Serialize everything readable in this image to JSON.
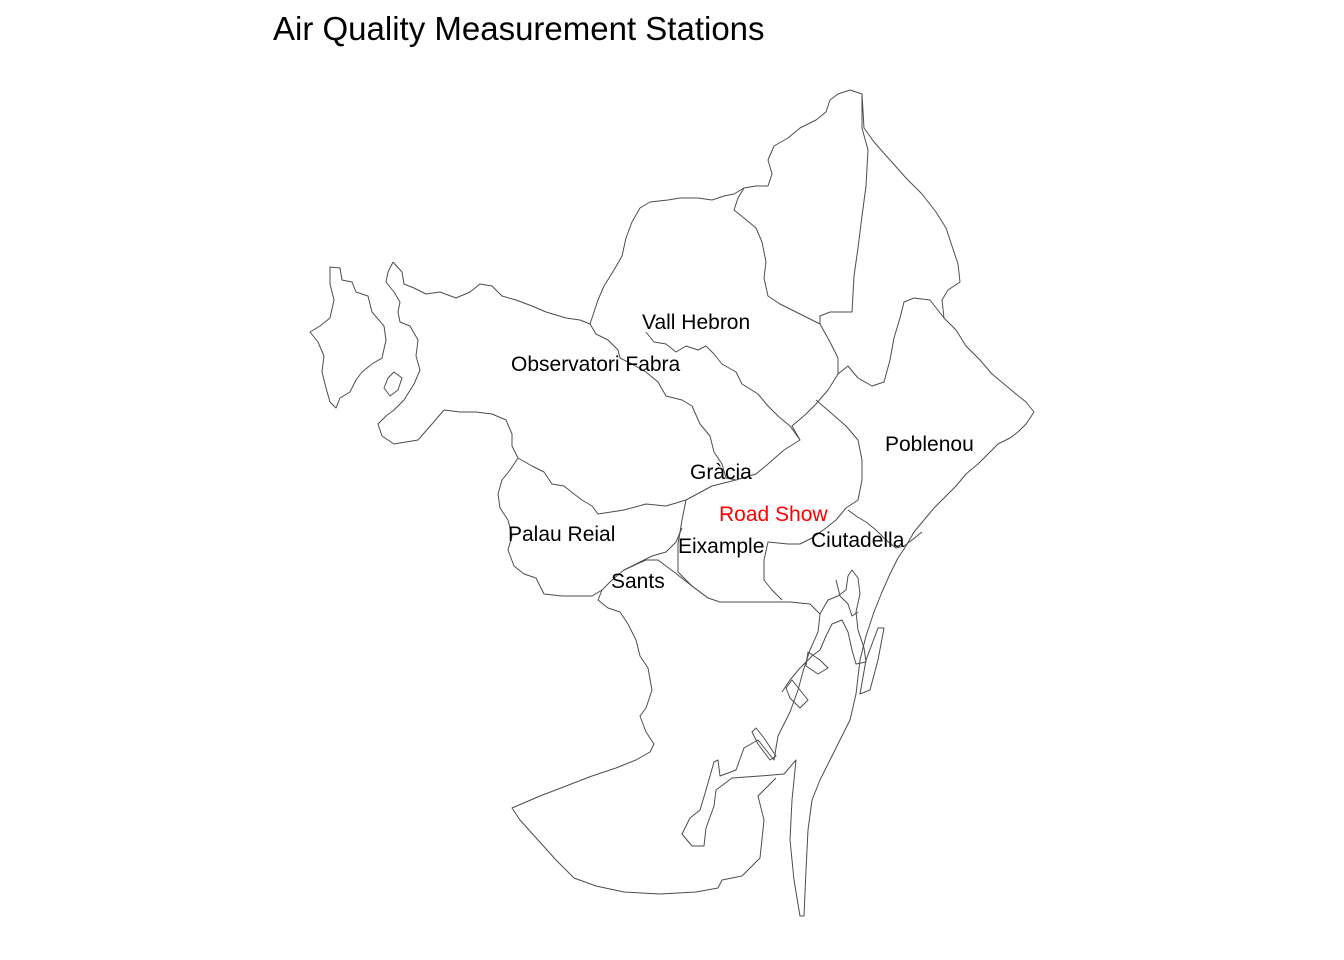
{
  "title": "Air Quality Measurement Stations",
  "colors": {
    "background": "#ffffff",
    "boundary": "#4d4d4d",
    "label_default": "#000000",
    "label_highlight": "#ff0000"
  },
  "stations": [
    {
      "id": "vall-hebron",
      "name": "Vall Hebron",
      "highlight": false
    },
    {
      "id": "observatori-fabra",
      "name": "Observatori Fabra",
      "highlight": false
    },
    {
      "id": "poblenou",
      "name": "Poblenou",
      "highlight": false
    },
    {
      "id": "gracia",
      "name": "Gràcia",
      "highlight": false
    },
    {
      "id": "road-show",
      "name": "Road Show",
      "highlight": true
    },
    {
      "id": "palau-reial",
      "name": "Palau Reial",
      "highlight": false
    },
    {
      "id": "ciutadella",
      "name": "Ciutadella",
      "highlight": false
    },
    {
      "id": "eixample",
      "name": "Eixample",
      "highlight": false
    },
    {
      "id": "sants",
      "name": "Sants",
      "highlight": false
    }
  ]
}
